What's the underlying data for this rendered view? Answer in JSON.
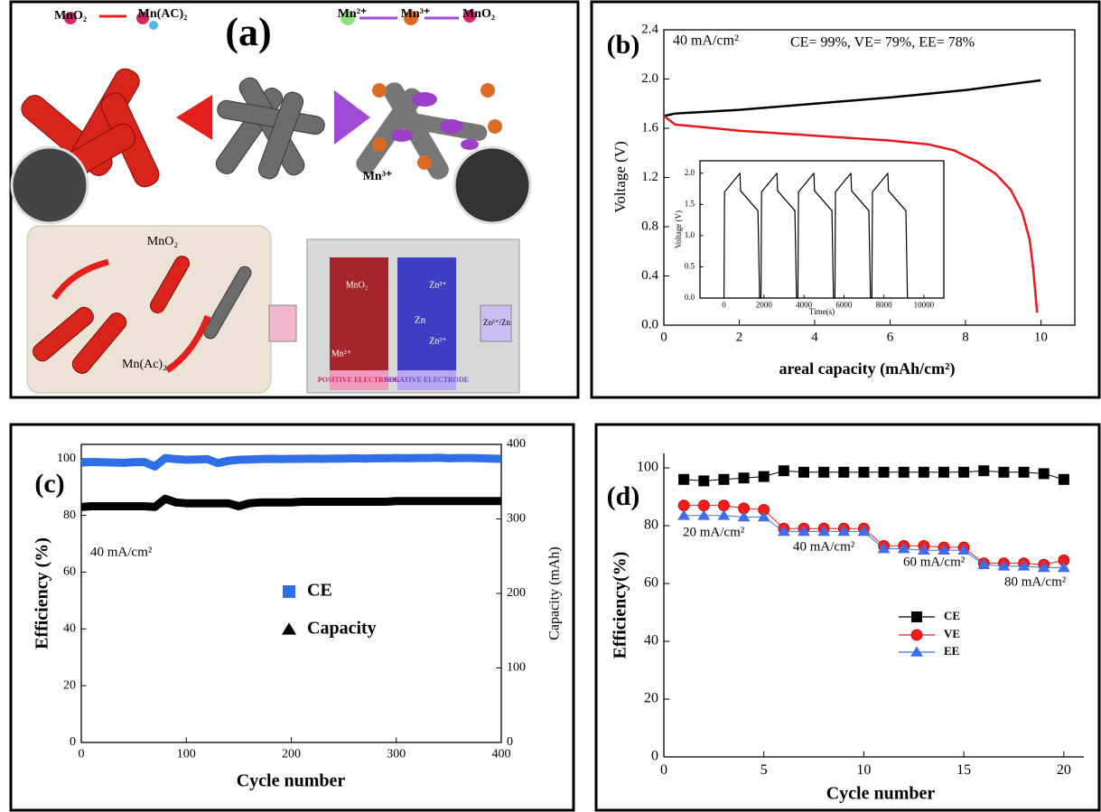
{
  "figure_a": {
    "panel_label": "(a)",
    "labels": [
      "MnO₂",
      "Mn(AC)₂",
      "Mn²⁺",
      "Mn³⁺",
      "MnO₂",
      "Mn³⁺",
      "MnO₂",
      "Mn(Ac)₂",
      "MnO₂",
      "Zn²⁺",
      "Zn",
      "Zn²⁺",
      "Mn²⁺",
      "Zn²⁺/Zn",
      "POSITIVE ELECTRODE",
      "NEGATIVE ELECTRODE"
    ]
  },
  "chart_data": [
    {
      "type": "line",
      "panel_label": "(b)",
      "xlabel": "areal capacity (mAh/cm²)",
      "ylabel": "Voltage (V)",
      "annotations": [
        "40 mA/cm²",
        "CE= 99%,  VE= 79%,  EE= 78%"
      ],
      "xlim": [
        0,
        10.9
      ],
      "ylim": [
        0,
        2.4
      ],
      "xticks": [
        0,
        2,
        4,
        6,
        8,
        10
      ],
      "yticks": [
        {
          "value": 0,
          "label": "0.0"
        },
        0.4,
        0.8,
        1.2,
        1.6,
        {
          "value": 2,
          "label": "2.0"
        },
        2.4
      ],
      "series": [
        {
          "color": "#000000",
          "x": [
            0,
            0.3,
            2,
            4,
            6,
            8,
            10
          ],
          "values": [
            1.7,
            1.72,
            1.75,
            1.8,
            1.85,
            1.91,
            1.99
          ]
        },
        {
          "color": "#e8191c",
          "x": [
            0,
            0.3,
            1,
            2,
            4,
            6,
            7,
            7.7,
            8.3,
            8.8,
            9.2,
            9.5,
            9.7,
            9.8,
            9.9
          ],
          "values": [
            1.7,
            1.63,
            1.61,
            1.58,
            1.54,
            1.5,
            1.47,
            1.42,
            1.33,
            1.23,
            1.1,
            0.92,
            0.7,
            0.45,
            0.1
          ]
        }
      ]
    },
    {
      "type": "line",
      "xlabel": "Time(s)",
      "ylabel": "Voltage (V)",
      "xlim": [
        -1200,
        11000
      ],
      "ylim": [
        0,
        2.2
      ],
      "xticks": [
        0,
        2000,
        4000,
        6000,
        8000,
        10000
      ],
      "yticks": [
        {
          "value": 0,
          "label": "0.0"
        },
        0.5,
        {
          "value": 1,
          "label": "1.0"
        },
        1.5,
        {
          "value": 2,
          "label": "2.0"
        }
      ],
      "series": [
        {
          "color": "#000000",
          "x": [
            0,
            30,
            800,
            830,
            1700,
            1780,
            1850,
            1880,
            2650,
            2680,
            3550,
            3630,
            3700,
            3730,
            4500,
            4530,
            5400,
            5480,
            5550,
            5580,
            6350,
            6380,
            7250,
            7330,
            7400,
            7430,
            8200,
            8230,
            9100,
            9180
          ],
          "values": [
            0,
            1.7,
            2.0,
            1.72,
            1.4,
            0,
            0,
            1.7,
            2.0,
            1.72,
            1.4,
            0,
            0,
            1.7,
            2.0,
            1.72,
            1.4,
            0,
            0,
            1.7,
            2.0,
            1.72,
            1.4,
            0,
            0,
            1.7,
            2.0,
            1.72,
            1.4,
            0
          ]
        }
      ]
    },
    {
      "type": "line",
      "panel_label": "(c)",
      "xlabel": "Cycle number",
      "ylabel": "Efficiency (%)",
      "y2label": "Capacity (mAh)",
      "annotations": [
        "40 mA/cm²"
      ],
      "xlim": [
        0,
        400
      ],
      "ylim": [
        0,
        105
      ],
      "y2lim": [
        0,
        400
      ],
      "xticks": [
        0,
        100,
        200,
        300,
        400
      ],
      "yticks": [
        0,
        20,
        40,
        60,
        80,
        100
      ],
      "y2ticks": [
        0,
        100,
        200,
        300,
        400
      ],
      "x": [
        0,
        10,
        20,
        30,
        40,
        50,
        60,
        70,
        80,
        90,
        100,
        110,
        120,
        130,
        140,
        150,
        160,
        170,
        180,
        190,
        200,
        210,
        220,
        230,
        240,
        250,
        260,
        270,
        280,
        290,
        300,
        310,
        320,
        330,
        340,
        350,
        360,
        370,
        380,
        390,
        400
      ],
      "series": [
        {
          "name": "CE",
          "color": "#2e6fe8",
          "marker": "square",
          "values": [
            98.6,
            98.8,
            98.7,
            98.6,
            98.5,
            98.7,
            98.8,
            97.2,
            100.2,
            99.8,
            99.6,
            99.7,
            99.8,
            98.4,
            99.2,
            99.6,
            99.7,
            99.8,
            99.9,
            99.8,
            99.9,
            99.9,
            100,
            99.9,
            100,
            100,
            100.1,
            100,
            100.1,
            100.1,
            100.2,
            100.1,
            100.2,
            100.2,
            100.3,
            100.1,
            100.2,
            100.2,
            100.1,
            100,
            99.9
          ]
        },
        {
          "name": "Capacity",
          "color": "#000000",
          "marker": "triangle",
          "axis": "y2",
          "values": [
            316,
            317,
            317,
            317,
            317,
            317,
            317,
            316,
            327,
            322,
            321,
            321,
            321,
            321,
            321,
            317,
            321,
            322,
            322,
            322,
            322,
            323,
            323,
            323,
            323,
            323,
            323,
            323,
            323,
            323,
            324,
            324,
            324,
            324,
            324,
            324,
            324,
            324,
            324,
            324,
            324
          ]
        }
      ]
    },
    {
      "type": "line",
      "panel_label": "(d)",
      "xlabel": "Cycle number",
      "ylabel": "Efficiency(%)",
      "annotations": [
        "20 mA/cm²",
        "40 mA/cm²",
        "60 mA/cm²",
        "80 mA/cm²"
      ],
      "xlim": [
        0,
        21
      ],
      "ylim": [
        0,
        105
      ],
      "xticks": [
        0,
        5,
        10,
        15,
        20
      ],
      "yticks": [
        0,
        20,
        40,
        60,
        80,
        100
      ],
      "x": [
        1,
        2,
        3,
        4,
        5,
        6,
        7,
        8,
        9,
        10,
        11,
        12,
        13,
        14,
        15,
        16,
        17,
        18,
        19,
        20
      ],
      "series": [
        {
          "name": "CE",
          "color": "#000000",
          "marker": "square",
          "values": [
            96,
            95.5,
            96,
            96.5,
            97,
            99,
            98.5,
            98.5,
            98.5,
            98.5,
            98.5,
            98.5,
            98.5,
            98.5,
            98.5,
            99,
            98.5,
            98.5,
            98,
            96
          ]
        },
        {
          "name": "VE",
          "color": "#ff1a1a",
          "marker": "circle",
          "values": [
            87,
            87,
            87,
            86,
            85.5,
            79,
            79,
            79,
            79,
            79,
            73,
            73,
            73,
            72.5,
            72.5,
            67,
            67,
            67,
            66.5,
            68
          ]
        },
        {
          "name": "EE",
          "color": "#3f6df0",
          "marker": "triangle",
          "values": [
            83.5,
            83.5,
            83.5,
            83,
            83,
            78,
            78,
            78,
            78,
            78,
            72,
            72,
            71.5,
            71.5,
            71.5,
            66.5,
            66,
            66,
            65.5,
            65.5
          ]
        }
      ]
    }
  ]
}
